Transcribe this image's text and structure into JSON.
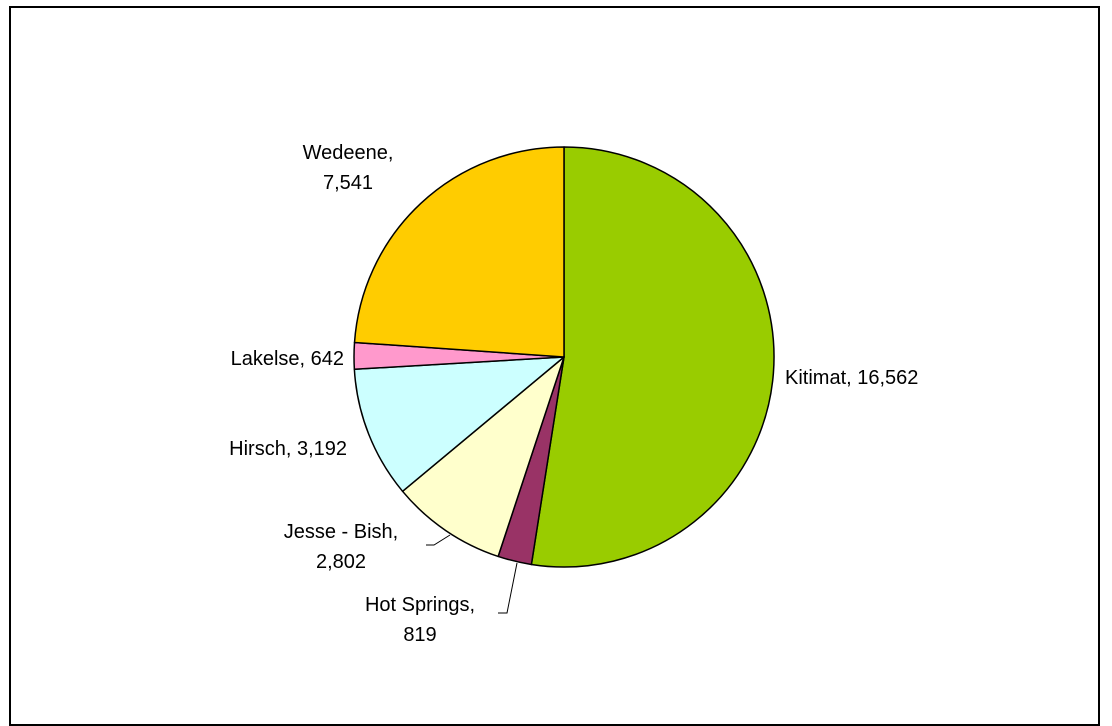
{
  "chart_data": {
    "type": "pie",
    "title": "",
    "start_angle_deg": 0,
    "direction": "clockwise",
    "slices": [
      {
        "label": "Kitimat",
        "value": 16562,
        "display": "16,562",
        "color": "#99cc00"
      },
      {
        "label": "Hot Springs",
        "value": 819,
        "display": "819",
        "color": "#993366"
      },
      {
        "label": "Jesse - Bish",
        "value": 2802,
        "display": "2,802",
        "color": "#ffffcc"
      },
      {
        "label": "Hirsch",
        "value": 3192,
        "display": "3,192",
        "color": "#ccffff"
      },
      {
        "label": "Lakelse",
        "value": 642,
        "display": "642",
        "color": "#ff99cc"
      },
      {
        "label": "Wedeene",
        "value": 7541,
        "display": "7,541",
        "color": "#ffcc00"
      }
    ]
  }
}
